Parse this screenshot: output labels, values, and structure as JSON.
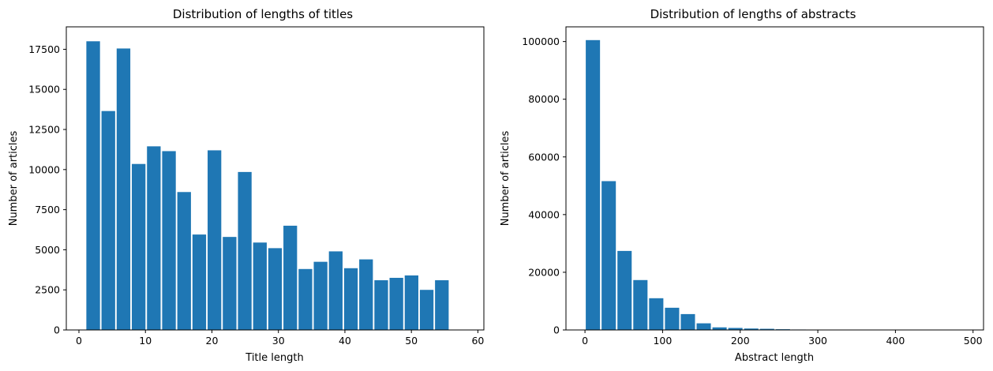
{
  "chart_data": [
    {
      "type": "bar",
      "title": "Distribution of lengths of titles",
      "xlabel": "Title length",
      "ylabel": "Number of articles",
      "xlim": [
        -1.9,
        60.9
      ],
      "ylim": [
        0,
        18900
      ],
      "xticks": [
        0,
        10,
        20,
        30,
        40,
        50,
        60
      ],
      "yticks": [
        0,
        2500,
        5000,
        7500,
        10000,
        12500,
        15000,
        17500
      ],
      "bar_color": "#1f77b4",
      "bin_start": 1,
      "bin_width": 2.28,
      "values": [
        18000,
        13650,
        17550,
        10350,
        11450,
        11150,
        8600,
        5950,
        11200,
        5800,
        9850,
        5450,
        5100,
        6500,
        3800,
        4250,
        4900,
        3850,
        4400,
        3100,
        3250,
        3400,
        2500,
        3100
      ],
      "grid": false
    },
    {
      "type": "bar",
      "title": "Distribution of lengths of abstracts",
      "xlabel": "Abstract length",
      "ylabel": "Number of articles",
      "xlim": [
        -24.5,
        513.5
      ],
      "ylim": [
        0,
        105100
      ],
      "xticks": [
        0,
        100,
        200,
        300,
        400,
        500
      ],
      "yticks": [
        0,
        20000,
        40000,
        60000,
        80000,
        100000
      ],
      "bar_color": "#1f77b4",
      "bin_start": 0,
      "bin_width": 20.4,
      "values": [
        100500,
        51600,
        27400,
        17300,
        11000,
        7700,
        5500,
        2300,
        900,
        700,
        500,
        400,
        250,
        150,
        100,
        80,
        60,
        40,
        30,
        20,
        15,
        10,
        5,
        5
      ],
      "grid": false
    }
  ]
}
